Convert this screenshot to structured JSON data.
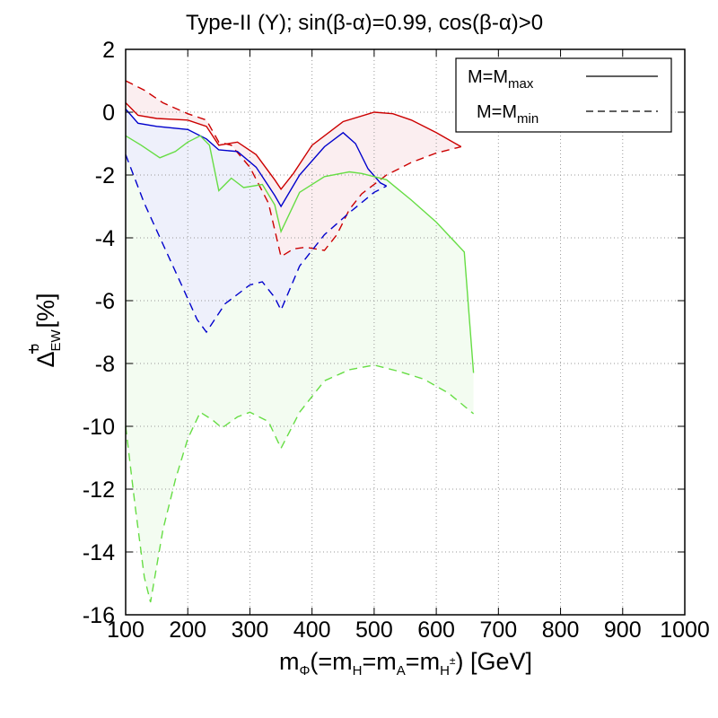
{
  "chart_data": {
    "type": "line",
    "title": "Type-II (Y); sin(β-α)=0.99, cos(β-α)>0",
    "xlabel": {
      "main": "m",
      "sub_phi": "Φ",
      "mid": "(=m",
      "sub_h": "H",
      "eq1": "=m",
      "sub_a": "A",
      "eq2": "=m",
      "sub_hpm": "H",
      "sup_pm": "±",
      "tail": ") [GeV]"
    },
    "ylabel": {
      "main": "Δ",
      "sub": "EW",
      "sup": "b",
      "unit": " [%]"
    },
    "xlim": [
      100,
      1000
    ],
    "ylim": [
      -16,
      2
    ],
    "x_ticks": [
      100,
      200,
      300,
      400,
      500,
      600,
      700,
      800,
      900,
      1000
    ],
    "y_ticks": [
      2,
      0,
      -2,
      -4,
      -6,
      -8,
      -10,
      -12,
      -14,
      -16
    ],
    "grid": true,
    "legend": {
      "position": "top-right",
      "entries": [
        {
          "label": "M=M",
          "sub": "max",
          "style": "solid"
        },
        {
          "label": "M=M",
          "sub": "min",
          "style": "dashed"
        }
      ]
    },
    "series": [
      {
        "name": "red",
        "color": "#cc0000",
        "fill": "#fbeef0",
        "max": [
          [
            100,
            0.3
          ],
          [
            120,
            -0.1
          ],
          [
            150,
            -0.2
          ],
          [
            200,
            -0.25
          ],
          [
            230,
            -0.45
          ],
          [
            250,
            -1.05
          ],
          [
            280,
            -0.95
          ],
          [
            310,
            -1.35
          ],
          [
            340,
            -2.15
          ],
          [
            350,
            -2.45
          ],
          [
            370,
            -1.95
          ],
          [
            400,
            -1.05
          ],
          [
            450,
            -0.3
          ],
          [
            500,
            0
          ],
          [
            530,
            -0.05
          ],
          [
            560,
            -0.25
          ],
          [
            600,
            -0.65
          ],
          [
            640,
            -1.1
          ]
        ],
        "min": [
          [
            100,
            1
          ],
          [
            130,
            0.7
          ],
          [
            160,
            0.3
          ],
          [
            200,
            -0.05
          ],
          [
            230,
            -0.25
          ],
          [
            250,
            -0.95
          ],
          [
            270,
            -1.05
          ],
          [
            300,
            -1.75
          ],
          [
            330,
            -2.9
          ],
          [
            350,
            -4.6
          ],
          [
            370,
            -4.35
          ],
          [
            390,
            -4.3
          ],
          [
            420,
            -4.4
          ],
          [
            440,
            -3.9
          ],
          [
            460,
            -3.1
          ],
          [
            480,
            -2.6
          ],
          [
            520,
            -2
          ],
          [
            560,
            -1.6
          ],
          [
            600,
            -1.3
          ],
          [
            640,
            -1.1
          ]
        ]
      },
      {
        "name": "blue",
        "color": "#0000cc",
        "fill": "#eef0fb",
        "max": [
          [
            100,
            0.1
          ],
          [
            120,
            -0.35
          ],
          [
            150,
            -0.45
          ],
          [
            200,
            -0.55
          ],
          [
            230,
            -0.85
          ],
          [
            250,
            -1.2
          ],
          [
            280,
            -1.25
          ],
          [
            310,
            -1.75
          ],
          [
            340,
            -2.65
          ],
          [
            350,
            -3
          ],
          [
            380,
            -2
          ],
          [
            420,
            -1.1
          ],
          [
            450,
            -0.65
          ],
          [
            470,
            -1
          ],
          [
            490,
            -1.8
          ],
          [
            510,
            -2.25
          ],
          [
            520,
            -2.35
          ]
        ],
        "min": [
          [
            100,
            -1.35
          ],
          [
            130,
            -2.9
          ],
          [
            160,
            -4.2
          ],
          [
            190,
            -5.5
          ],
          [
            215,
            -6.6
          ],
          [
            230,
            -7
          ],
          [
            260,
            -6.1
          ],
          [
            280,
            -5.8
          ],
          [
            300,
            -5.5
          ],
          [
            320,
            -5.4
          ],
          [
            340,
            -5.9
          ],
          [
            350,
            -6.3
          ],
          [
            380,
            -4.9
          ],
          [
            420,
            -3.9
          ],
          [
            460,
            -3.2
          ],
          [
            500,
            -2.55
          ],
          [
            520,
            -2.35
          ]
        ]
      },
      {
        "name": "green",
        "color": "#66dd44",
        "fill": "#f3fcf1",
        "max": [
          [
            100,
            -0.75
          ],
          [
            125,
            -1.05
          ],
          [
            155,
            -1.45
          ],
          [
            180,
            -1.25
          ],
          [
            200,
            -0.95
          ],
          [
            220,
            -0.75
          ],
          [
            235,
            -1.05
          ],
          [
            250,
            -2.5
          ],
          [
            270,
            -2.1
          ],
          [
            290,
            -2.4
          ],
          [
            320,
            -2.3
          ],
          [
            340,
            -2.95
          ],
          [
            350,
            -3.8
          ],
          [
            380,
            -2.55
          ],
          [
            420,
            -2.05
          ],
          [
            460,
            -1.9
          ],
          [
            480,
            -1.95
          ],
          [
            520,
            -2.15
          ],
          [
            560,
            -2.8
          ],
          [
            600,
            -3.5
          ],
          [
            645,
            -4.45
          ],
          [
            660,
            -8.3
          ]
        ],
        "min": [
          [
            100,
            -10
          ],
          [
            115,
            -12.5
          ],
          [
            130,
            -14.8
          ],
          [
            140,
            -15.6
          ],
          [
            160,
            -13.3
          ],
          [
            180,
            -11.7
          ],
          [
            200,
            -10.4
          ],
          [
            220,
            -9.55
          ],
          [
            240,
            -9.8
          ],
          [
            255,
            -10.05
          ],
          [
            280,
            -9.7
          ],
          [
            300,
            -9.55
          ],
          [
            330,
            -9.85
          ],
          [
            350,
            -10.7
          ],
          [
            380,
            -9.55
          ],
          [
            420,
            -8.55
          ],
          [
            460,
            -8.2
          ],
          [
            500,
            -8.05
          ],
          [
            540,
            -8.25
          ],
          [
            580,
            -8.5
          ],
          [
            620,
            -8.95
          ],
          [
            660,
            -9.6
          ]
        ]
      }
    ]
  }
}
